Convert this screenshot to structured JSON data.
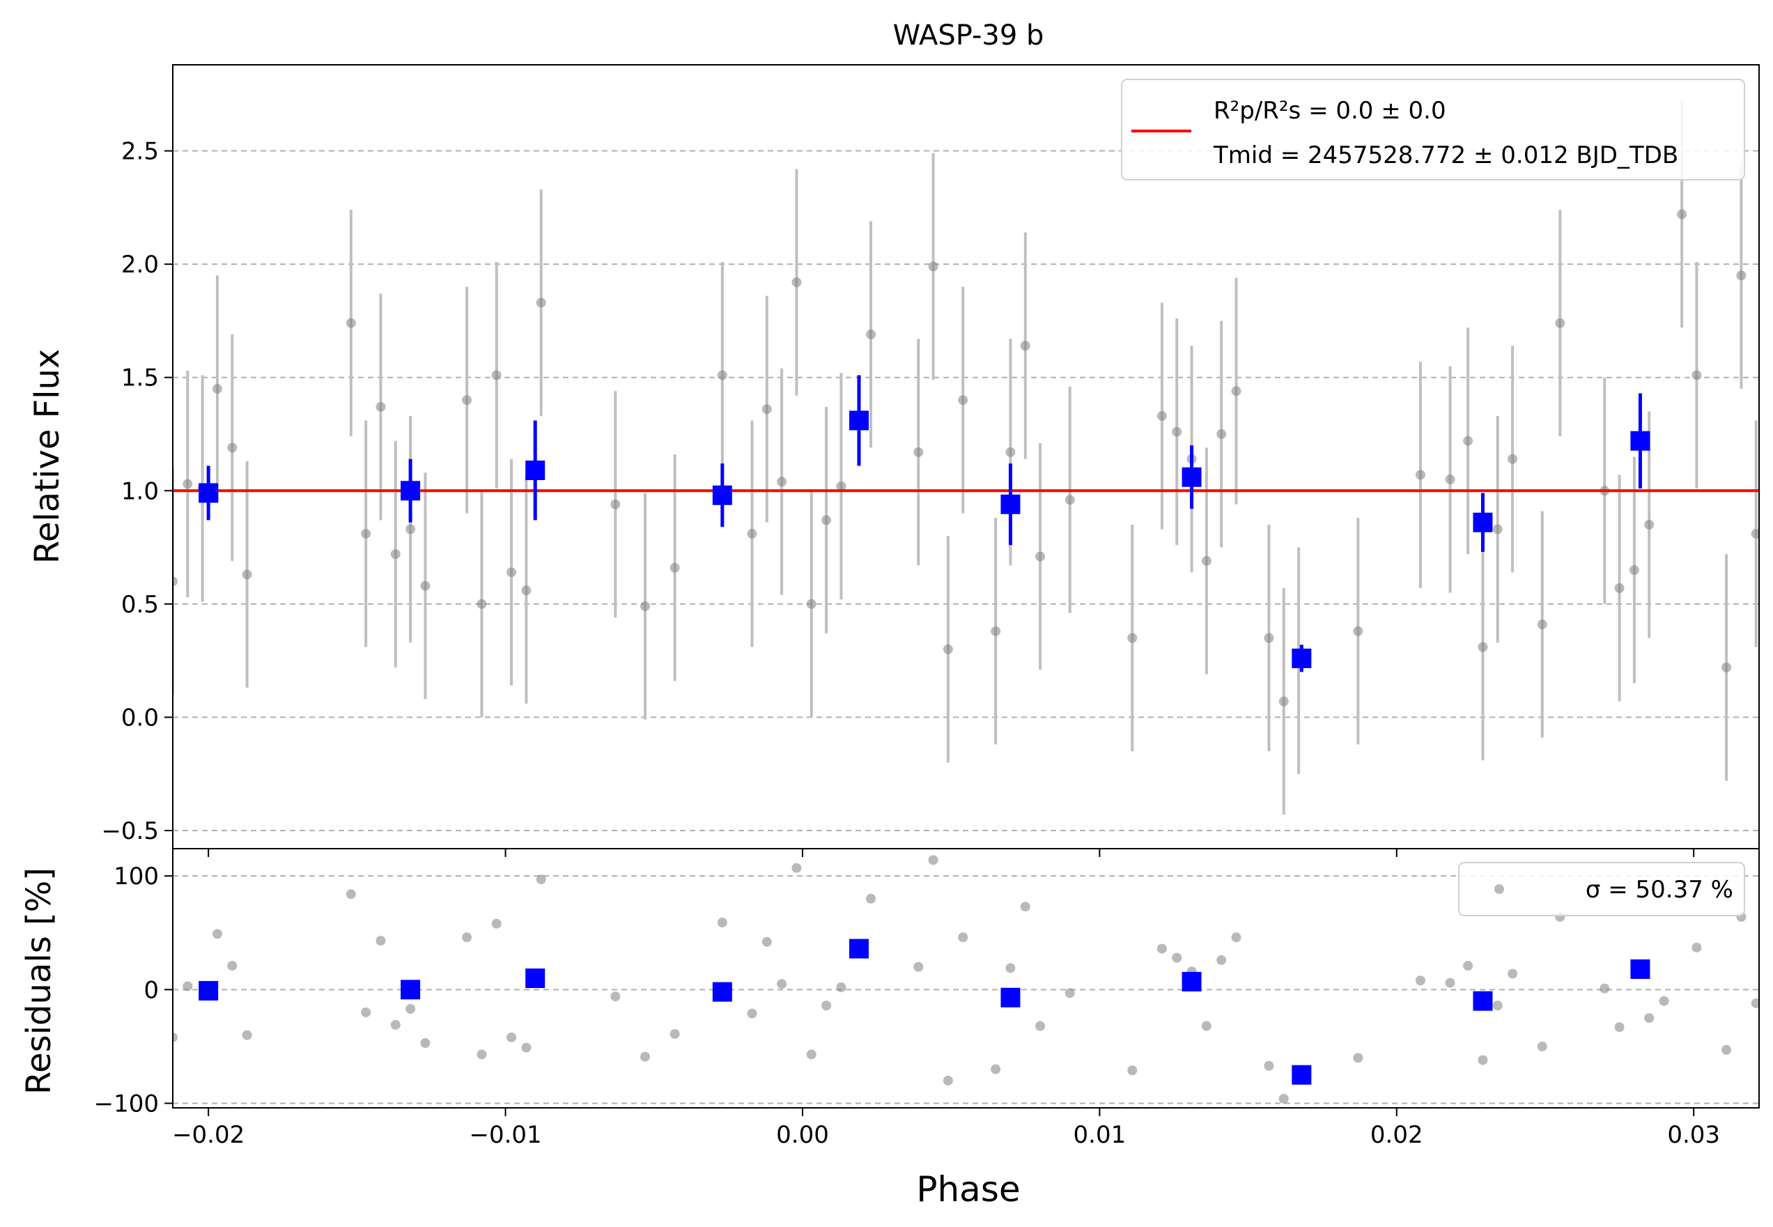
{
  "figure": {
    "title": "WASP-39 b"
  },
  "colors": {
    "raw_points": "#808080",
    "raw_errorbars": "#bfbfbf",
    "binned": "#0000ff",
    "model": "#ff0000",
    "grid": "#b0b0b0"
  },
  "legend": {
    "model_line1": "R²p/R²s = 0.0 ± 0.0",
    "model_line2": "Tmid = 2457528.772 ± 0.012 BJD_TDB",
    "residual_sigma": "σ = 50.37 %",
    "placement": "top-right"
  },
  "chart_data": [
    {
      "type": "scatter",
      "panel": "flux",
      "xlabel": "",
      "ylabel": "Relative Flux",
      "xlim": [
        -0.0212,
        0.0322
      ],
      "ylim": [
        -0.58,
        2.88
      ],
      "yticks": [
        -0.5,
        0.0,
        0.5,
        1.0,
        1.5,
        2.0,
        2.5
      ],
      "ytick_labels": [
        "−0.5",
        "0.0",
        "0.5",
        "1.0",
        "1.5",
        "2.0",
        "2.5"
      ],
      "grid": "horizontal dashed",
      "model": {
        "name": "transit model",
        "x": [
          -0.0212,
          0.0322
        ],
        "y": [
          1.0,
          1.0
        ]
      },
      "raw": {
        "x": [
          -0.0212,
          -0.0207,
          -0.0202,
          -0.0197,
          -0.0192,
          -0.0187,
          -0.0152,
          -0.0147,
          -0.0142,
          -0.0137,
          -0.0132,
          -0.0127,
          -0.0113,
          -0.0108,
          -0.0103,
          -0.0098,
          -0.0093,
          -0.0088,
          -0.0063,
          -0.0053,
          -0.0043,
          -0.0027,
          -0.0017,
          -0.0012,
          -0.0007,
          -0.0002,
          0.0003,
          0.0008,
          0.0013,
          0.0023,
          0.0039,
          0.0044,
          0.0049,
          0.0054,
          0.0065,
          0.007,
          0.0075,
          0.008,
          0.009,
          0.0111,
          0.0121,
          0.0126,
          0.0131,
          0.0136,
          0.0141,
          0.0146,
          0.0157,
          0.0162,
          0.0167,
          0.0187,
          0.0208,
          0.0218,
          0.0224,
          0.0229,
          0.0234,
          0.0239,
          0.0249,
          0.0255,
          0.027,
          0.0275,
          0.028,
          0.0285,
          0.0296,
          0.0301,
          0.0311,
          0.0316,
          0.0321
        ],
        "y": [
          0.6,
          1.03,
          1.01,
          1.45,
          1.19,
          0.63,
          1.74,
          0.81,
          1.37,
          0.72,
          0.83,
          0.58,
          1.4,
          0.5,
          1.51,
          0.64,
          0.56,
          1.83,
          0.94,
          0.49,
          0.66,
          1.51,
          0.81,
          1.36,
          1.04,
          1.92,
          0.5,
          0.87,
          1.02,
          1.69,
          1.17,
          1.99,
          0.3,
          1.4,
          0.38,
          1.17,
          1.64,
          0.71,
          0.96,
          0.35,
          1.33,
          1.26,
          1.14,
          0.69,
          1.25,
          1.44,
          0.35,
          0.07,
          0.25,
          0.38,
          1.07,
          1.05,
          1.22,
          0.31,
          0.83,
          1.14,
          0.41,
          1.74,
          1.0,
          0.57,
          0.65,
          0.85,
          2.22,
          1.51,
          0.22,
          1.95,
          0.81
        ],
        "yerr": 0.5
      },
      "binned": {
        "x": [
          -0.02,
          -0.0132,
          -0.009,
          -0.0027,
          0.0019,
          0.007,
          0.0131,
          0.0168,
          0.0229,
          0.0282
        ],
        "y": [
          0.99,
          1.0,
          1.09,
          0.98,
          1.31,
          0.94,
          1.06,
          0.26,
          0.86,
          1.22
        ],
        "yerr": [
          0.12,
          0.14,
          0.22,
          0.14,
          0.2,
          0.18,
          0.14,
          0.06,
          0.13,
          0.21
        ]
      }
    },
    {
      "type": "scatter",
      "panel": "residuals",
      "xlabel": "Phase",
      "ylabel": "Residuals [%]",
      "xlim": [
        -0.0212,
        0.0322
      ],
      "ylim": [
        -104,
        124
      ],
      "yticks": [
        -100,
        0,
        100
      ],
      "ytick_labels": [
        "−100",
        "0",
        "100"
      ],
      "xticks": [
        -0.02,
        -0.01,
        0.0,
        0.01,
        0.02,
        0.03
      ],
      "xtick_labels": [
        "−0.02",
        "−0.01",
        "0.00",
        "0.01",
        "0.02",
        "0.03"
      ],
      "grid": "horizontal dashed",
      "raw": {
        "x": [
          -0.0212,
          -0.0207,
          -0.0197,
          -0.0192,
          -0.0187,
          -0.0152,
          -0.0147,
          -0.0142,
          -0.0137,
          -0.0132,
          -0.0127,
          -0.0113,
          -0.0108,
          -0.0103,
          -0.0098,
          -0.0093,
          -0.0088,
          -0.0063,
          -0.0053,
          -0.0043,
          -0.0027,
          -0.0017,
          -0.0012,
          -0.0007,
          -0.0002,
          0.0003,
          0.0008,
          0.0013,
          0.0023,
          0.0039,
          0.0044,
          0.0049,
          0.0054,
          0.0065,
          0.007,
          0.0075,
          0.008,
          0.009,
          0.0111,
          0.0121,
          0.0126,
          0.0131,
          0.0136,
          0.0141,
          0.0146,
          0.0157,
          0.0162,
          0.0187,
          0.0208,
          0.0218,
          0.0224,
          0.0229,
          0.0234,
          0.0239,
          0.0249,
          0.0255,
          0.027,
          0.0275,
          0.0285,
          0.029,
          0.0301,
          0.0311,
          0.0316,
          0.0321
        ],
        "y": [
          -42,
          3,
          49,
          21,
          -40,
          84,
          -20,
          43,
          -31,
          -17,
          -47,
          46,
          -57,
          58,
          -42,
          -51,
          97,
          -6,
          -59,
          -39,
          59,
          -21,
          42,
          5,
          107,
          -57,
          -14,
          2,
          80,
          20,
          114,
          -80,
          46,
          -70,
          19,
          73,
          -32,
          -3,
          -71,
          36,
          28,
          16,
          -32,
          26,
          46,
          -67,
          -96,
          -60,
          8,
          6,
          21,
          -62,
          -14,
          14,
          -50,
          64,
          1,
          -33,
          -25,
          -10,
          37,
          -53,
          64,
          -12
        ]
      },
      "binned": {
        "x": [
          -0.02,
          -0.0132,
          -0.009,
          -0.0027,
          0.0019,
          0.007,
          0.0131,
          0.0168,
          0.0229,
          0.0282
        ],
        "y": [
          -1,
          0,
          10,
          -2,
          36,
          -7,
          7,
          -75,
          -10,
          18
        ]
      }
    }
  ]
}
